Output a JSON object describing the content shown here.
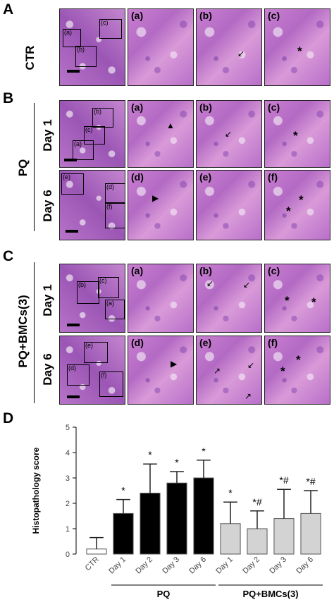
{
  "panels": {
    "A": {
      "letter": "A",
      "row_label": "CTR",
      "sublabels": [
        "(a)",
        "(b)",
        "(c)"
      ],
      "roi_labels": [
        "(a)",
        "(b)",
        "(c)"
      ]
    },
    "B": {
      "letter": "B",
      "group_label": "PQ",
      "row1_label": "Day 1",
      "row2_label": "Day 6",
      "row1_sublabels": [
        "(a)",
        "(b)",
        "(c)"
      ],
      "row2_sublabels": [
        "(d)",
        "(e)",
        "(f)"
      ],
      "row1_roi": [
        "(b)",
        "(c)",
        "(a)"
      ],
      "row2_roi": [
        "(e)",
        "(d)",
        "(f)"
      ]
    },
    "C": {
      "letter": "C",
      "group_label": "PQ+BMCs(3)",
      "row1_label": "Day 1",
      "row2_label": "Day 6",
      "row1_sublabels": [
        "(a)",
        "(b)",
        "(c)"
      ],
      "row2_sublabels": [
        "(d)",
        "(e)",
        "(f)"
      ],
      "row1_roi": [
        "(b)",
        "(c)",
        "(a)"
      ],
      "row2_roi": [
        "(e)",
        "(d)",
        "(f)"
      ]
    },
    "D": {
      "letter": "D"
    }
  },
  "markers": {
    "asterisk": "*"
  },
  "colors": {
    "pq_bar": "#000000",
    "bmc_bar": "#d3d3d3",
    "ctr_bar": "#ffffff",
    "stain": "#c07acb"
  },
  "chart_data": {
    "type": "bar",
    "ylabel": "Histopathology score",
    "ylim": [
      0,
      5
    ],
    "yticks": [
      "0",
      "1",
      "2",
      "3",
      "4",
      "5"
    ],
    "categories": [
      "CTR",
      "Day 1",
      "Day 2",
      "Day 3",
      "Day 6",
      "Day 1",
      "Day 2",
      "Day 3",
      "Day 6"
    ],
    "groups": [
      {
        "label": "PQ",
        "indices": [
          1,
          2,
          3,
          4
        ]
      },
      {
        "label": "PQ+BMCs(3)",
        "indices": [
          5,
          6,
          7,
          8
        ]
      }
    ],
    "values": [
      0.2,
      1.6,
      2.4,
      2.8,
      3.0,
      1.2,
      1.0,
      1.4,
      1.6
    ],
    "errors": [
      0.45,
      0.55,
      1.15,
      0.45,
      0.7,
      0.85,
      0.7,
      1.15,
      0.9
    ],
    "annotations": [
      "",
      "*",
      "*",
      "*",
      "*",
      "*",
      "*#",
      "*#",
      "*#"
    ],
    "fills": [
      "#ffffff",
      "#000000",
      "#000000",
      "#000000",
      "#000000",
      "#d3d3d3",
      "#d3d3d3",
      "#d3d3d3",
      "#d3d3d3"
    ]
  }
}
